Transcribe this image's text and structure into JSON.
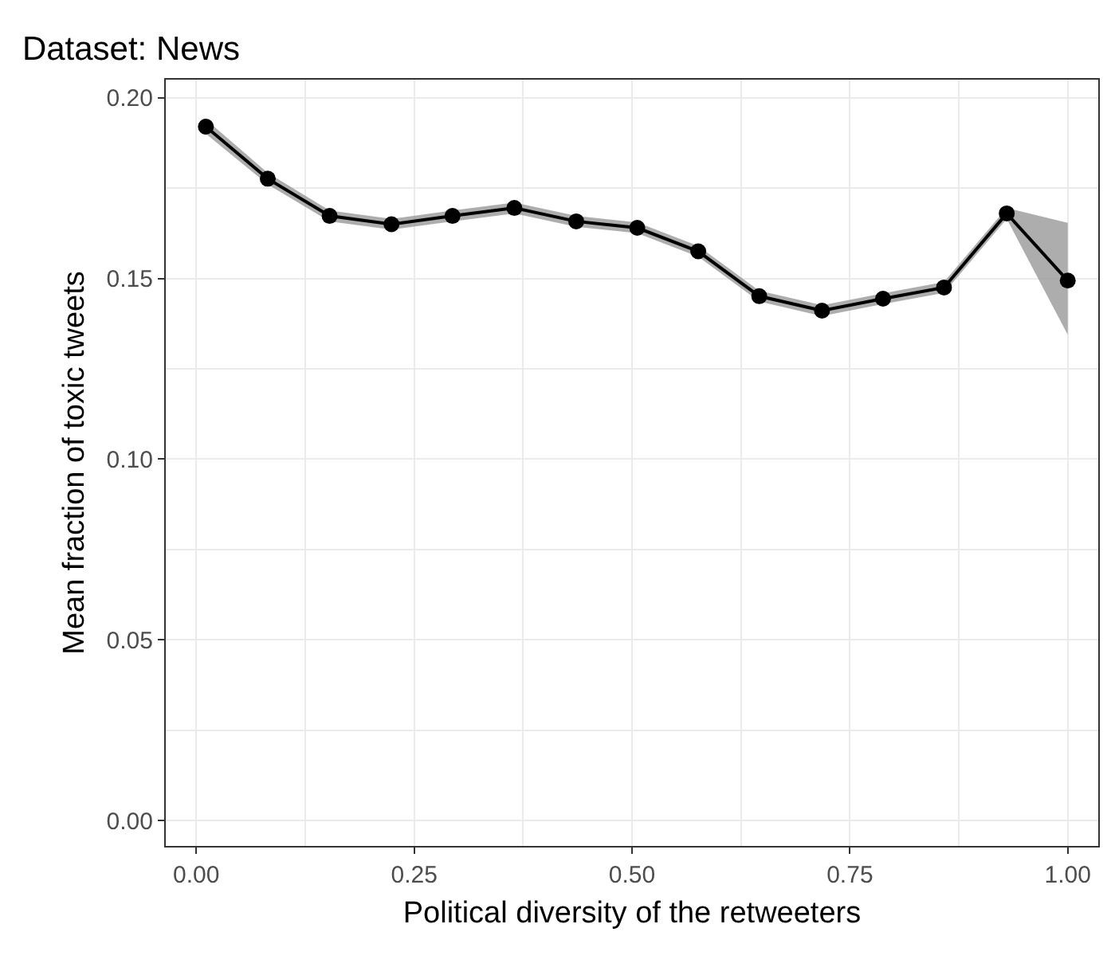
{
  "chart_data": {
    "type": "line",
    "title": "Dataset: News",
    "xlabel": "Political diversity of the retweeters",
    "ylabel": "Mean fraction of toxic tweets",
    "x": [
      0.011,
      0.082,
      0.153,
      0.224,
      0.294,
      0.365,
      0.436,
      0.506,
      0.576,
      0.646,
      0.718,
      0.788,
      0.858,
      0.93,
      1.0
    ],
    "series": [
      {
        "color": "#000000",
        "values": [
          0.192,
          0.1776,
          0.1673,
          0.165,
          0.1673,
          0.1695,
          0.1658,
          0.164,
          0.1575,
          0.1451,
          0.1411,
          0.1444,
          0.1475,
          0.168,
          0.1494
        ],
        "lower": [
          0.19,
          0.176,
          0.1658,
          0.1635,
          0.1658,
          0.168,
          0.1643,
          0.1625,
          0.156,
          0.1436,
          0.1396,
          0.1429,
          0.146,
          0.1665,
          0.1344
        ],
        "upper": [
          0.194,
          0.1792,
          0.1688,
          0.1665,
          0.1688,
          0.171,
          0.1673,
          0.1655,
          0.159,
          0.1466,
          0.1426,
          0.1459,
          0.149,
          0.1695,
          0.1654
        ]
      }
    ],
    "xlim": [
      -0.035,
      1.035
    ],
    "ylim": [
      -0.007,
      0.205
    ],
    "xticks": [
      {
        "value": 0,
        "label": "0.00"
      },
      {
        "value": 0.25,
        "label": "0.25"
      },
      {
        "value": 0.5,
        "label": "0.50"
      },
      {
        "value": 0.75,
        "label": "0.75"
      },
      {
        "value": 1,
        "label": "1.00"
      }
    ],
    "yticks": [
      {
        "value": 0,
        "label": "0.00"
      },
      {
        "value": 0.05,
        "label": "0.05"
      },
      {
        "value": 0.1,
        "label": "0.10"
      },
      {
        "value": 0.15,
        "label": "0.15"
      },
      {
        "value": 0.2,
        "label": "0.20"
      }
    ],
    "grid": true,
    "marker": "circle",
    "line_style": "solid"
  }
}
